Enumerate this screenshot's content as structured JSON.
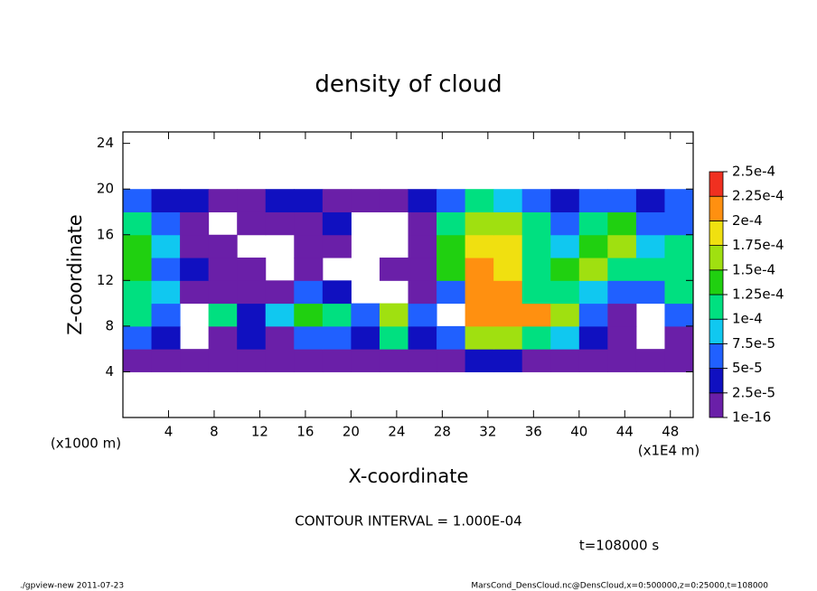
{
  "chart_data": {
    "type": "heatmap",
    "title": "density of cloud",
    "xlabel": "X-coordinate",
    "ylabel": "Z-coordinate",
    "x_unit": "(x1E4 m)",
    "y_unit": "(x1000 m)",
    "annotation": "CONTOUR INTERVAL = 1.000E-04",
    "time_label": "t=108000 s",
    "footer_left": "./gpview-new  2011-07-23",
    "footer_right": "MarsCond_DensCloud.nc@DensCloud,x=0:500000,z=0:25000,t=108000",
    "xlim": [
      0,
      50
    ],
    "ylim": [
      0,
      25
    ],
    "xticks": [
      4,
      8,
      12,
      16,
      20,
      24,
      28,
      32,
      36,
      40,
      44,
      48
    ],
    "yticks": [
      4,
      8,
      12,
      16,
      20,
      24
    ],
    "x": [
      1.25,
      3.75,
      6.25,
      8.75,
      11.25,
      13.75,
      16.25,
      18.75,
      21.25,
      23.75,
      26.25,
      28.75,
      31.25,
      33.75,
      36.25,
      38.75,
      41.25,
      43.75,
      46.25,
      48.75
    ],
    "y": [
      5,
      7,
      9,
      11,
      13,
      15,
      17,
      19
    ],
    "z": [
      [
        1e-05,
        1e-05,
        1e-05,
        1e-05,
        1e-05,
        1e-05,
        1e-05,
        1e-05,
        1e-05,
        1e-05,
        1e-05,
        1e-05,
        3e-05,
        3e-05,
        2e-05,
        1e-05,
        1e-05,
        1e-05,
        1e-05,
        1e-05
      ],
      [
        5e-05,
        3e-05,
        null,
        1e-05,
        3e-05,
        1e-05,
        6e-05,
        5e-05,
        3e-05,
        0.0001,
        3e-05,
        5e-05,
        0.00015,
        0.00016,
        0.00012,
        9e-05,
        3e-05,
        1e-05,
        null,
        1e-05
      ],
      [
        0.0001,
        6e-05,
        null,
        0.00011,
        3e-05,
        8e-05,
        0.00013,
        0.00012,
        5e-05,
        0.00015,
        6e-05,
        null,
        0.00021,
        0.00021,
        0.0002,
        0.00015,
        5e-05,
        1e-05,
        null,
        6e-05
      ],
      [
        0.00012,
        9e-05,
        2e-05,
        1e-05,
        1e-05,
        2e-05,
        5e-05,
        3e-05,
        null,
        null,
        1e-05,
        5e-05,
        0.00022,
        0.0002,
        0.00012,
        0.0001,
        8e-05,
        6e-05,
        5e-05,
        0.0001
      ],
      [
        0.00013,
        5e-05,
        3e-05,
        1e-05,
        1e-05,
        null,
        1e-05,
        null,
        null,
        1e-05,
        1e-05,
        0.00013,
        0.00022,
        0.00018,
        0.00011,
        0.00014,
        0.00015,
        0.00012,
        0.0001,
        0.00011
      ],
      [
        0.00014,
        8e-05,
        2e-05,
        1e-05,
        null,
        null,
        1e-05,
        1e-05,
        null,
        null,
        1e-05,
        0.00014,
        0.00019,
        0.00018,
        0.00012,
        8e-05,
        0.00013,
        0.00016,
        9e-05,
        0.00012
      ],
      [
        0.0001,
        7e-05,
        1e-05,
        null,
        1e-05,
        1e-05,
        2e-05,
        3e-05,
        null,
        null,
        2e-05,
        0.00012,
        0.00017,
        0.00015,
        0.0001,
        7e-05,
        0.00012,
        0.00013,
        6e-05,
        7e-05
      ],
      [
        5e-05,
        4e-05,
        3e-05,
        2e-05,
        2e-05,
        3e-05,
        3e-05,
        2e-05,
        1e-05,
        2e-05,
        3e-05,
        7e-05,
        0.0001,
        8e-05,
        5e-05,
        4e-05,
        6e-05,
        7e-05,
        3e-05,
        5e-05
      ]
    ],
    "levels": [
      {
        "value": 1e-16,
        "label": "1e-16"
      },
      {
        "value": 2.5e-05,
        "label": "2.5e-5"
      },
      {
        "value": 5e-05,
        "label": "5e-5"
      },
      {
        "value": 7.5e-05,
        "label": "7.5e-5"
      },
      {
        "value": 0.0001,
        "label": "1e-4"
      },
      {
        "value": 0.000125,
        "label": "1.25e-4"
      },
      {
        "value": 0.00015,
        "label": "1.5e-4"
      },
      {
        "value": 0.000175,
        "label": "1.75e-4"
      },
      {
        "value": 0.0002,
        "label": "2e-4"
      },
      {
        "value": 0.000225,
        "label": "2.25e-4"
      },
      {
        "value": 0.00025,
        "label": "2.5e-4"
      }
    ],
    "colors": [
      "#6a1fa8",
      "#1010c0",
      "#2060ff",
      "#10c8f0",
      "#00e080",
      "#20d010",
      "#a0e010",
      "#f0e010",
      "#ff9010",
      "#f03020"
    ]
  }
}
